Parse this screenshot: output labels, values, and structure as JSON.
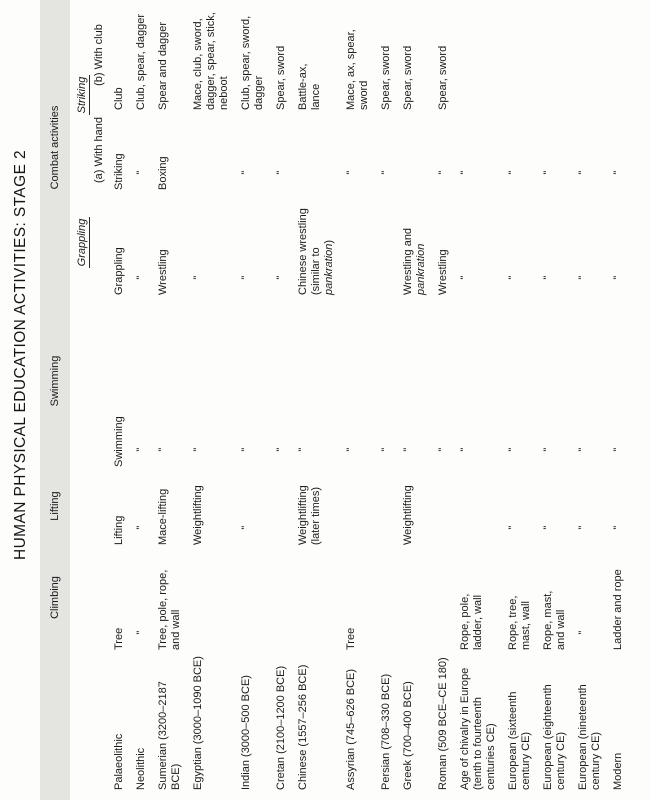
{
  "title": "HUMAN PHYSICAL EDUCATION ACTIVITIES: STAGE 2",
  "header": {
    "climbing": "Climbing",
    "lifting": "Lifting",
    "swimming": "Swimming",
    "combat": "Combat activities",
    "grappling": "Grappling",
    "striking": "Striking",
    "with_hand": "(a) With hand",
    "with_club": "(b) With club"
  },
  "ditto_mark": "\"",
  "colors": {
    "header_band": "#e4e4e1",
    "text": "#1b1b1b",
    "page": "#fdfdfc"
  },
  "rows": [
    {
      "era": "Palaeolithic",
      "climbing": "Tree",
      "lifting": "Lifting",
      "swimming": "Swimming",
      "grappling": "Grappling",
      "striking": "Striking",
      "club": "Club"
    },
    {
      "era": "Neolithic",
      "climbing": "\"",
      "lifting": "\"",
      "swimming": "\"",
      "grappling": "\"",
      "striking": "\"",
      "club": "Club, spear, dagger"
    },
    {
      "era": "Sumerian (3200–2187 BCE)",
      "climbing": "Tree, pole, rope,\nand wall",
      "lifting": "Mace-lifting",
      "swimming": "\"",
      "grappling": "Wrestling",
      "striking": "Boxing",
      "club": "Spear and dagger"
    },
    {
      "era": "Egyptian (3000–1090 BCE)",
      "climbing": "",
      "lifting": "Weightlifting",
      "swimming": "\"",
      "grappling": "\"",
      "striking": "",
      "club": "Mace, club, sword,\ndagger, spear, stick,\nneboot"
    },
    {
      "era": "Indian (3000–500 BCE)",
      "climbing": "",
      "lifting": "\"",
      "swimming": "\"",
      "grappling": "\"",
      "striking": "\"",
      "club": "Club, spear, sword,\ndagger"
    },
    {
      "era": "Cretan (2100–1200 BCE)",
      "climbing": "",
      "lifting": "",
      "swimming": "\"",
      "grappling": "\"",
      "striking": "\"",
      "club": "Spear, sword"
    },
    {
      "era": "Chinese (1557–256 BCE)",
      "climbing": "",
      "lifting": "Weightlifting\n(later times)",
      "swimming": "\"",
      "grappling": "Chinese wrestling\n(similar to\n*pankration*)",
      "striking": "",
      "club": "Battle-ax,\nlance"
    },
    {
      "era": "Assyrian (745–626 BCE)",
      "climbing": "Tree",
      "lifting": "",
      "swimming": "\"",
      "grappling": "",
      "striking": "\"",
      "club": "Mace, ax, spear,\nsword"
    },
    {
      "era": "Persian (708–330 BCE)",
      "climbing": "",
      "lifting": "",
      "swimming": "\"",
      "grappling": "",
      "striking": "\"",
      "club": "Spear, sword"
    },
    {
      "era": "Greek (700–400 BCE)",
      "climbing": "",
      "lifting": "Weightlifting",
      "swimming": "\"",
      "grappling": "Wrestling and\n*pankration*",
      "striking": "",
      "club": "Spear, sword"
    },
    {
      "era": "Roman (509 BCE–CE 180)",
      "climbing": "",
      "lifting": "",
      "swimming": "\"",
      "grappling": "Wrestling",
      "striking": "\"",
      "club": "Spear, sword"
    },
    {
      "era": "Age of chivalry in Europe\n(tenth to fourteenth\ncenturies CE)",
      "climbing": "Rope, pole,\nladder, wall",
      "lifting": "",
      "swimming": "\"",
      "grappling": "\"",
      "striking": "\"",
      "club": ""
    },
    {
      "era": "European (sixteenth\ncentury CE)",
      "climbing": "Rope, tree,\nmast, wall",
      "lifting": "\"",
      "swimming": "\"",
      "grappling": "\"",
      "striking": "\"",
      "club": ""
    },
    {
      "era": "European (eighteenth\ncentury CE)",
      "climbing": "Rope, mast,\nand wall",
      "lifting": "\"",
      "swimming": "\"",
      "grappling": "\"",
      "striking": "\"",
      "club": ""
    },
    {
      "era": "European (nineteenth\ncentury CE)",
      "climbing": "\"",
      "lifting": "\"",
      "swimming": "\"",
      "grappling": "\"",
      "striking": "\"",
      "club": ""
    },
    {
      "era": "Modern",
      "climbing": "Ladder and rope",
      "lifting": "\"",
      "swimming": "\"",
      "grappling": "\"",
      "striking": "\"",
      "club": ""
    }
  ]
}
